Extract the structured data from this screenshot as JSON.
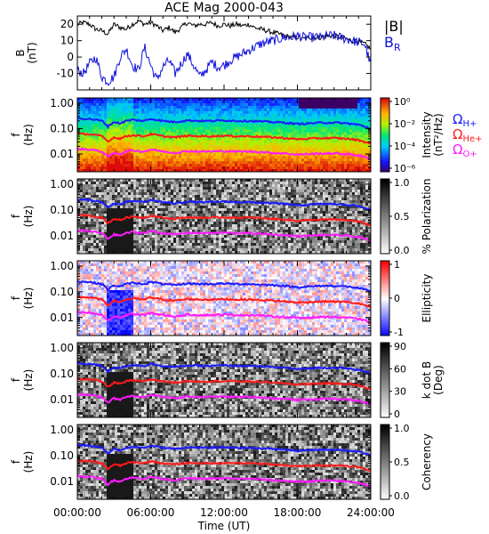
{
  "chart_data": [
    {
      "type": "line",
      "title": "ACE Mag 2000-043",
      "ylabel": "B",
      "yunit": "(nT)",
      "yticks": [
        20,
        10,
        0,
        -10
      ],
      "ylim": [
        -20,
        25
      ],
      "series": [
        {
          "name": "|B|",
          "color": "#000000",
          "x": [
            0,
            0.5,
            1,
            1.5,
            2,
            2.5,
            3,
            3.5,
            4,
            4.5,
            5,
            5.5,
            6,
            6.5,
            7,
            7.5,
            8,
            8.5,
            9,
            9.5,
            10,
            10.5,
            11,
            11.5,
            12,
            12.5,
            13,
            13.5,
            14,
            14.5,
            15,
            15.5,
            16,
            16.5,
            17,
            17.5,
            18,
            18.5,
            19,
            19.5,
            20,
            20.5,
            21,
            21.5,
            22,
            22.5,
            23,
            23.5,
            24
          ],
          "values": [
            20,
            21,
            20,
            17,
            16,
            14,
            20,
            18,
            17,
            20,
            22,
            20,
            21,
            19,
            16,
            18,
            15,
            18,
            21,
            19,
            20,
            20,
            21,
            19,
            20,
            19,
            20,
            19,
            20,
            18,
            17,
            16,
            15,
            14,
            13,
            12,
            12,
            11,
            12,
            12,
            12,
            13,
            13,
            12,
            11,
            10,
            9,
            8,
            5
          ]
        },
        {
          "name": "B",
          "subscript": "R",
          "color": "#1010dd",
          "x": [
            0,
            0.5,
            1,
            1.5,
            2,
            2.5,
            3,
            3.5,
            4,
            4.5,
            5,
            5.5,
            6,
            6.5,
            7,
            7.5,
            8,
            8.5,
            9,
            9.5,
            10,
            10.5,
            11,
            11.5,
            12,
            12.5,
            13,
            13.5,
            14,
            14.5,
            15,
            15.5,
            16,
            16.5,
            17,
            17.5,
            18,
            18.5,
            19,
            19.5,
            20,
            20.5,
            21,
            21.5,
            22,
            22.5,
            23,
            23.5,
            24
          ],
          "values": [
            -8,
            -10,
            -4,
            0,
            -12,
            -15,
            -12,
            0,
            5,
            -5,
            -8,
            6,
            -5,
            -14,
            -6,
            -2,
            -10,
            -4,
            2,
            -5,
            -12,
            -8,
            -3,
            -6,
            -5,
            -2,
            0,
            2,
            4,
            6,
            8,
            9,
            10,
            11,
            12,
            12,
            13,
            12,
            12,
            12,
            12,
            13,
            13,
            12,
            11,
            10,
            9,
            8,
            -5
          ]
        }
      ],
      "grid": false
    },
    {
      "type": "heatmap",
      "ylabel": "f",
      "yunit": "(Hz)",
      "ylog": true,
      "ylim": [
        0.002,
        1.6
      ],
      "yticks": [
        "1.00",
        "0.10",
        "0.01"
      ],
      "colorbar": {
        "label": "Intensity",
        "unit": "(nT²/Hz)",
        "scale": "log",
        "ticks": [
          "10⁰",
          "10⁻²",
          "10⁻⁴",
          "10⁻⁶"
        ],
        "colormap": "rainbow"
      },
      "gyro_labels": [
        {
          "text": "Ω",
          "sub": "H+",
          "color": "#1a1aff"
        },
        {
          "text": "Ω",
          "sub": "He+",
          "color": "#ff1a1a"
        },
        {
          "text": "Ω",
          "sub": "O+",
          "color": "#ff1aff"
        }
      ]
    },
    {
      "type": "heatmap",
      "ylabel": "f",
      "yunit": "(Hz)",
      "ylog": true,
      "ylim": [
        0.002,
        1.6
      ],
      "yticks": [
        "1.00",
        "0.10",
        "0.01"
      ],
      "colorbar": {
        "label": "% Polarization",
        "ticks": [
          "1.0",
          "0.5",
          "0.0"
        ],
        "colormap": "gray"
      }
    },
    {
      "type": "heatmap",
      "ylabel": "f",
      "yunit": "(Hz)",
      "ylog": true,
      "ylim": [
        0.002,
        1.6
      ],
      "yticks": [
        "1.00",
        "0.10",
        "0.01"
      ],
      "colorbar": {
        "label": "Ellipticity",
        "ticks": [
          "1",
          "0",
          "-1"
        ],
        "colormap": "bwr"
      }
    },
    {
      "type": "heatmap",
      "ylabel": "f",
      "yunit": "(Hz)",
      "ylog": true,
      "ylim": [
        0.002,
        1.6
      ],
      "yticks": [
        "1.00",
        "0.10",
        "0.01"
      ],
      "colorbar": {
        "label": "k dot B",
        "unit": "(Deg)",
        "ticks": [
          "90",
          "60",
          "30",
          "0"
        ],
        "colormap": "gray"
      }
    },
    {
      "type": "heatmap",
      "ylabel": "f",
      "yunit": "(Hz)",
      "ylog": true,
      "ylim": [
        0.002,
        1.6
      ],
      "yticks": [
        "1.00",
        "0.10",
        "0.01"
      ],
      "colorbar": {
        "label": "Coherency",
        "ticks": [
          "1.0",
          "0.5",
          "0.0"
        ],
        "colormap": "gray"
      }
    }
  ],
  "shared_x": {
    "xlabel": "Time (UT)",
    "xlim": [
      0,
      24
    ],
    "ticks": [
      "00:00:00",
      "06:00:00",
      "12:00:00",
      "18:00:00",
      "24:00:00"
    ]
  },
  "gyro_lines": {
    "x": [
      0,
      1,
      2,
      2.5,
      3,
      3.5,
      4,
      4.5,
      5,
      5.5,
      6,
      7,
      8,
      9,
      10,
      11,
      12,
      13,
      14,
      15,
      16,
      17,
      18,
      19,
      20,
      21,
      22,
      23,
      24
    ],
    "H+": [
      0.25,
      0.24,
      0.2,
      0.12,
      0.18,
      0.16,
      0.2,
      0.22,
      0.21,
      0.2,
      0.24,
      0.2,
      0.18,
      0.21,
      0.2,
      0.2,
      0.21,
      0.2,
      0.2,
      0.19,
      0.18,
      0.17,
      0.15,
      0.16,
      0.17,
      0.17,
      0.16,
      0.14,
      0.1
    ],
    "He+": [
      0.063,
      0.06,
      0.05,
      0.03,
      0.045,
      0.04,
      0.05,
      0.055,
      0.052,
      0.05,
      0.06,
      0.05,
      0.045,
      0.052,
      0.05,
      0.05,
      0.052,
      0.05,
      0.05,
      0.048,
      0.045,
      0.042,
      0.038,
      0.04,
      0.042,
      0.042,
      0.04,
      0.035,
      0.025
    ],
    "O+": [
      0.016,
      0.015,
      0.0125,
      0.0075,
      0.011,
      0.01,
      0.0125,
      0.014,
      0.013,
      0.0125,
      0.015,
      0.0125,
      0.011,
      0.013,
      0.0125,
      0.0125,
      0.013,
      0.0125,
      0.0125,
      0.012,
      0.011,
      0.0105,
      0.0095,
      0.01,
      0.0105,
      0.0105,
      0.01,
      0.0088,
      0.0063
    ],
    "colors": {
      "H+": "#1a1aff",
      "He+": "#ff1a1a",
      "O+": "#ff1aff"
    }
  }
}
